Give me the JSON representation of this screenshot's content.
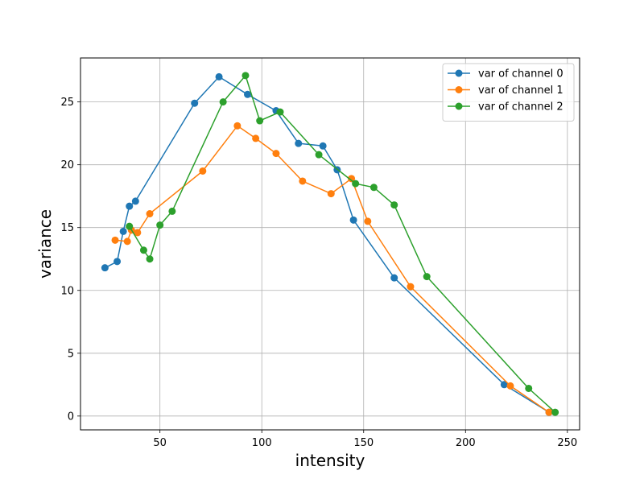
{
  "chart_data": {
    "type": "line",
    "xlabel": "intensity",
    "ylabel": "variance",
    "xlim": [
      11,
      256
    ],
    "ylim": [
      -1.1,
      28.5
    ],
    "xticks": [
      50,
      100,
      150,
      200,
      250
    ],
    "yticks": [
      0,
      5,
      10,
      15,
      20,
      25
    ],
    "grid": true,
    "legend_position": "top-right",
    "series": [
      {
        "name": "var of channel 0",
        "color": "#1f77b4",
        "x": [
          23,
          29,
          32,
          35,
          38,
          67,
          79,
          93,
          107,
          118,
          130,
          137,
          145,
          165,
          219,
          241
        ],
        "y": [
          11.8,
          12.3,
          14.7,
          16.7,
          17.1,
          24.9,
          27.0,
          25.6,
          24.3,
          21.7,
          21.5,
          19.6,
          15.6,
          11.0,
          2.5,
          0.3
        ]
      },
      {
        "name": "var of channel 1",
        "color": "#ff7f0e",
        "x": [
          28,
          34,
          36,
          39,
          45,
          71,
          88,
          97,
          107,
          120,
          134,
          144,
          152,
          173,
          222,
          241
        ],
        "y": [
          14.0,
          13.9,
          14.8,
          14.6,
          16.1,
          19.5,
          23.1,
          22.1,
          20.9,
          18.7,
          17.7,
          18.9,
          15.5,
          10.3,
          2.4,
          0.3
        ]
      },
      {
        "name": "var of channel 2",
        "color": "#2ca02c",
        "x": [
          35,
          42,
          45,
          50,
          56,
          81,
          92,
          99,
          109,
          128,
          146,
          155,
          165,
          181,
          231,
          244
        ],
        "y": [
          15.1,
          13.2,
          12.5,
          15.2,
          16.3,
          25.0,
          27.1,
          23.5,
          24.2,
          20.8,
          18.5,
          18.2,
          16.8,
          11.1,
          2.2,
          0.3
        ]
      }
    ]
  }
}
